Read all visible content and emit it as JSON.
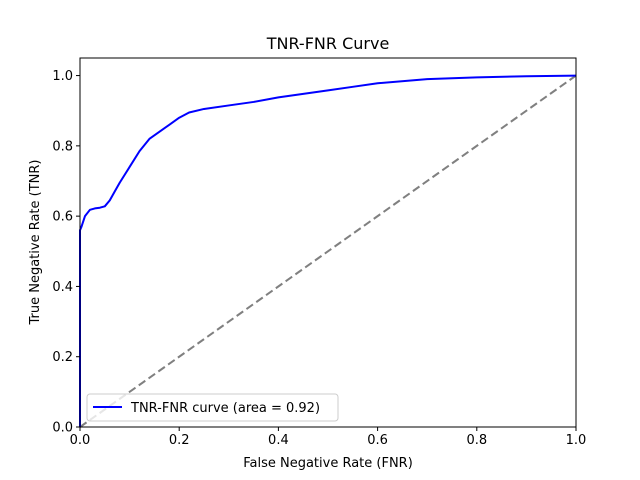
{
  "chart_data": {
    "type": "line",
    "title": "TNR-FNR Curve",
    "xlabel": "False Negative Rate (FNR)",
    "ylabel": "True Negative Rate (TNR)",
    "xlim": [
      0.0,
      1.0
    ],
    "ylim": [
      0.0,
      1.05
    ],
    "x_ticks": [
      "0.0",
      "0.2",
      "0.4",
      "0.6",
      "0.8",
      "1.0"
    ],
    "y_ticks": [
      "0.0",
      "0.2",
      "0.4",
      "0.6",
      "0.8",
      "1.0"
    ],
    "grid": false,
    "legend_position": "lower left",
    "series": [
      {
        "name": "TNR-FNR curve (area = 0.92)",
        "color": "#0000ff",
        "style": "solid",
        "x": [
          0.0,
          0.0,
          0.003,
          0.01,
          0.02,
          0.03,
          0.04,
          0.05,
          0.06,
          0.07,
          0.08,
          0.1,
          0.12,
          0.14,
          0.16,
          0.18,
          0.2,
          0.22,
          0.25,
          0.3,
          0.35,
          0.4,
          0.45,
          0.5,
          0.55,
          0.6,
          0.7,
          0.8,
          0.9,
          1.0
        ],
        "y": [
          0.0,
          0.56,
          0.57,
          0.6,
          0.618,
          0.622,
          0.624,
          0.628,
          0.645,
          0.67,
          0.695,
          0.74,
          0.785,
          0.82,
          0.84,
          0.86,
          0.88,
          0.895,
          0.905,
          0.915,
          0.925,
          0.938,
          0.948,
          0.958,
          0.968,
          0.978,
          0.99,
          0.995,
          0.998,
          1.0
        ]
      },
      {
        "name": "",
        "color": "#808080",
        "style": "dashed",
        "x": [
          0.0,
          1.0
        ],
        "y": [
          0.0,
          1.0
        ]
      }
    ]
  }
}
